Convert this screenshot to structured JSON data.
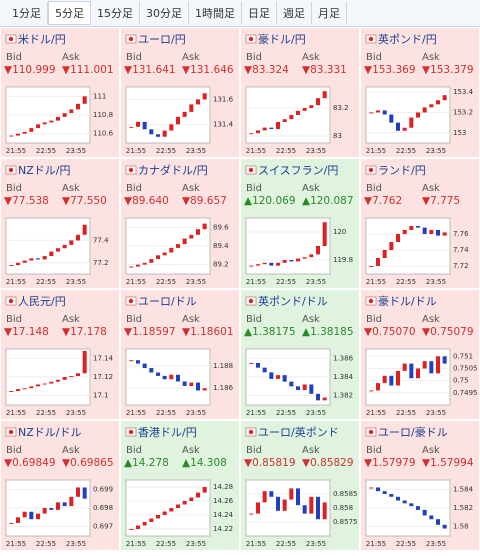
{
  "tabs": {
    "items": [
      "1分足",
      "5分足",
      "15分足",
      "30分足",
      "1時間足",
      "日足",
      "週足",
      "月足"
    ],
    "selected": 1
  },
  "labels": {
    "bid": "Bid",
    "ask": "Ask",
    "times": [
      "21:55",
      "22:55",
      "23:55"
    ]
  },
  "tiles": [
    {
      "title": "米ドル/円",
      "bid": "▼110.999",
      "ask": "▼111.001",
      "bg": "#fde2e2",
      "ylim": [
        110.5,
        111.1
      ],
      "yticks": [
        110.6,
        110.8,
        111
      ],
      "closes": [
        110.58,
        110.6,
        110.62,
        110.66,
        110.7,
        110.72,
        110.74,
        110.78,
        110.82,
        110.86,
        110.92,
        111.0
      ]
    },
    {
      "title": "ユーロ/円",
      "bid": "▼131.641",
      "ask": "▼131.646",
      "bg": "#fde2e2",
      "ylim": [
        131.25,
        131.7
      ],
      "yticks": [
        131.4,
        131.6
      ],
      "closes": [
        131.38,
        131.42,
        131.36,
        131.32,
        131.3,
        131.35,
        131.4,
        131.46,
        131.5,
        131.56,
        131.6,
        131.65
      ]
    },
    {
      "title": "豪ドル/円",
      "bid": "▼83.324",
      "ask": "▼83.331",
      "bg": "#fde2e2",
      "ylim": [
        82.95,
        83.35
      ],
      "yticks": [
        83,
        83.2
      ],
      "closes": [
        83.02,
        83.04,
        83.06,
        83.05,
        83.1,
        83.12,
        83.15,
        83.18,
        83.2,
        83.22,
        83.27,
        83.32
      ]
    },
    {
      "title": "英ポンド/円",
      "bid": "▼153.369",
      "ask": "▼153.379",
      "bg": "#fde2e2",
      "ylim": [
        152.9,
        153.45
      ],
      "yticks": [
        153,
        153.2,
        153.4
      ],
      "closes": [
        153.2,
        153.22,
        153.18,
        153.1,
        153.02,
        153.05,
        153.15,
        153.2,
        153.25,
        153.28,
        153.32,
        153.37
      ]
    },
    {
      "title": "NZドル/円",
      "bid": "▼77.538",
      "ask": "▼77.550",
      "bg": "#fde2e2",
      "ylim": [
        77.1,
        77.6
      ],
      "yticks": [
        77.2,
        77.4
      ],
      "closes": [
        77.18,
        77.2,
        77.22,
        77.24,
        77.23,
        77.26,
        77.3,
        77.33,
        77.36,
        77.4,
        77.45,
        77.54
      ]
    },
    {
      "title": "カナダドル/円",
      "bid": "▼89.640",
      "ask": "▼89.657",
      "bg": "#fde2e2",
      "ylim": [
        89.1,
        89.7
      ],
      "yticks": [
        89.2,
        89.4,
        89.6
      ],
      "closes": [
        89.18,
        89.2,
        89.22,
        89.26,
        89.3,
        89.33,
        89.38,
        89.42,
        89.48,
        89.52,
        89.58,
        89.64
      ]
    },
    {
      "title": "スイスフラン/円",
      "bid": "▲120.069",
      "ask": "▲120.087",
      "bg": "#dff3df",
      "ylim": [
        119.7,
        120.1
      ],
      "yticks": [
        119.8,
        120
      ],
      "closes": [
        119.76,
        119.77,
        119.78,
        119.76,
        119.78,
        119.8,
        119.79,
        119.81,
        119.82,
        119.84,
        119.9,
        120.07
      ]
    },
    {
      "title": "ランド/円",
      "bid": "▼7.762",
      "ask": "▼7.775",
      "bg": "#fde2e2",
      "ylim": [
        7.71,
        7.78
      ],
      "yticks": [
        7.72,
        7.74,
        7.76
      ],
      "closes": [
        7.72,
        7.73,
        7.74,
        7.75,
        7.76,
        7.765,
        7.77,
        7.768,
        7.76,
        7.765,
        7.758,
        7.762
      ]
    },
    {
      "title": "人民元/円",
      "bid": "▼17.148",
      "ask": "▼17.178",
      "bg": "#fde2e2",
      "ylim": [
        17.09,
        17.15
      ],
      "yticks": [
        17.1,
        17.12,
        17.14
      ],
      "closes": [
        17.105,
        17.107,
        17.108,
        17.11,
        17.112,
        17.113,
        17.115,
        17.117,
        17.12,
        17.121,
        17.124,
        17.148
      ]
    },
    {
      "title": "ユーロ/ドル",
      "bid": "▼1.18597",
      "ask": "▼1.18601",
      "bg": "#fde2e2",
      "ylim": [
        1.1845,
        1.1895
      ],
      "yticks": [
        1.186,
        1.188
      ],
      "closes": [
        1.1885,
        1.1882,
        1.1878,
        1.1874,
        1.1871,
        1.1868,
        1.1872,
        1.1866,
        1.1862,
        1.1865,
        1.1858,
        1.186
      ]
    },
    {
      "title": "英ポンド/ドル",
      "bid": "▲1.38175",
      "ask": "▲1.38185",
      "bg": "#dff3df",
      "ylim": [
        1.381,
        1.387
      ],
      "yticks": [
        1.382,
        1.384,
        1.386
      ],
      "closes": [
        1.3855,
        1.385,
        1.3845,
        1.3838,
        1.3842,
        1.3835,
        1.383,
        1.3826,
        1.3832,
        1.3822,
        1.3815,
        1.3818
      ]
    },
    {
      "title": "豪ドル/ドル",
      "bid": "▼0.75070",
      "ask": "▼0.75079",
      "bg": "#fde2e2",
      "ylim": [
        0.749,
        0.7513
      ],
      "yticks": [
        0.7495,
        0.75,
        0.7505,
        0.751
      ],
      "closes": [
        0.7496,
        0.7499,
        0.7502,
        0.7498,
        0.7504,
        0.7507,
        0.7501,
        0.7505,
        0.7508,
        0.7503,
        0.751,
        0.7507
      ]
    },
    {
      "title": "NZドル/ドル",
      "bid": "▼0.69849",
      "ask": "▼0.69865",
      "bg": "#fde2e2",
      "ylim": [
        0.6965,
        0.6995
      ],
      "yticks": [
        0.697,
        0.698,
        0.699
      ],
      "closes": [
        0.6972,
        0.6975,
        0.6978,
        0.6974,
        0.6977,
        0.698,
        0.6979,
        0.6983,
        0.6981,
        0.6986,
        0.6991,
        0.6985
      ]
    },
    {
      "title": "香港ドル/円",
      "bid": "▲14.278",
      "ask": "▲14.308",
      "bg": "#dff3df",
      "ylim": [
        14.21,
        14.29
      ],
      "yticks": [
        14.22,
        14.24,
        14.26,
        14.28
      ],
      "closes": [
        14.22,
        14.225,
        14.23,
        14.235,
        14.24,
        14.245,
        14.25,
        14.255,
        14.26,
        14.265,
        14.272,
        14.28
      ]
    },
    {
      "title": "ユーロ/英ポンド",
      "bid": "▼0.85819",
      "ask": "▼0.85829",
      "bg": "#dff3df",
      "ylim": [
        0.857,
        0.859
      ],
      "yticks": [
        0.8575,
        0.858,
        0.8585
      ],
      "closes": [
        0.8578,
        0.8582,
        0.8586,
        0.8584,
        0.8579,
        0.8583,
        0.8587,
        0.8581,
        0.8578,
        0.8584,
        0.8576,
        0.8582
      ]
    },
    {
      "title": "ユーロ/豪ドル",
      "bid": "▼1.57979",
      "ask": "▼1.57994",
      "bg": "#fde2e2",
      "ylim": [
        1.579,
        1.585
      ],
      "yticks": [
        1.58,
        1.582,
        1.584
      ],
      "closes": [
        1.5842,
        1.5838,
        1.5835,
        1.5832,
        1.5828,
        1.5825,
        1.5822,
        1.5818,
        1.5812,
        1.5808,
        1.5802,
        1.5798
      ]
    }
  ]
}
